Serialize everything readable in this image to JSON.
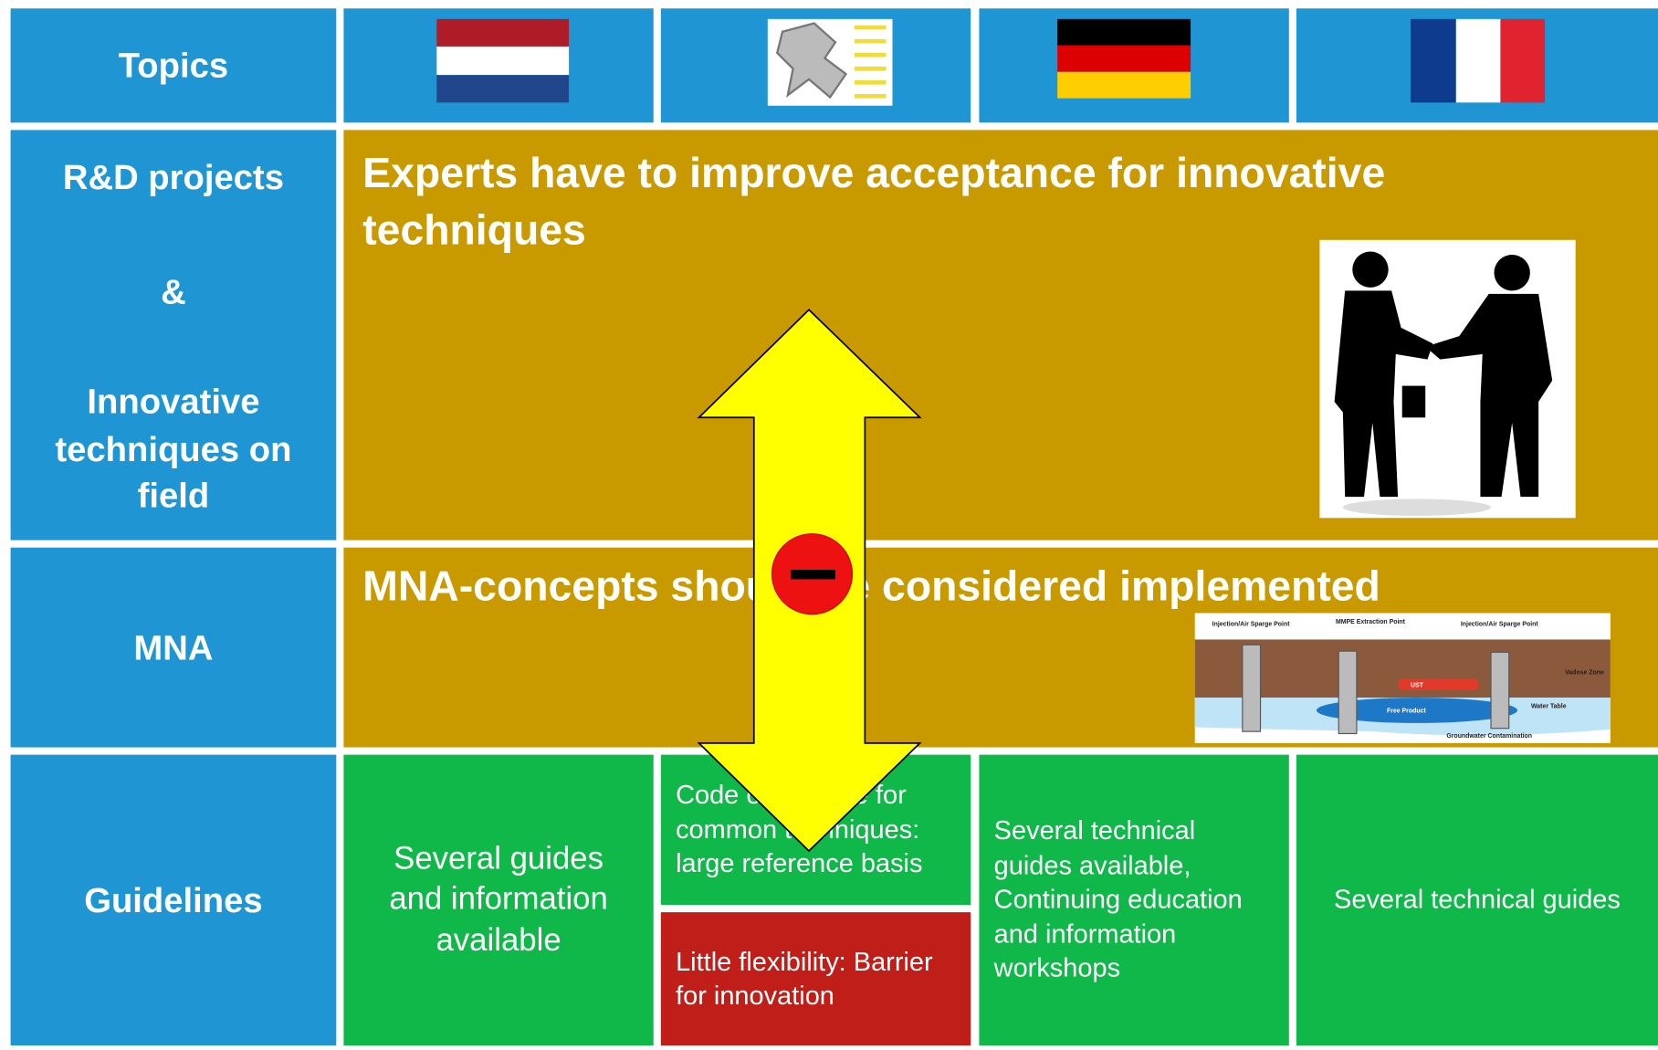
{
  "header": {
    "topics": "Topics"
  },
  "rows": [
    {
      "labels": [
        "R&D projects",
        "&",
        "Innovative techniques on field"
      ],
      "statement": "Experts have to improve acceptance for innovative techniques"
    },
    {
      "labels": [
        "MNA"
      ],
      "statement": "MNA-concepts should be considered implemented",
      "diagram": [
        "Injection/Air Sparge Point",
        "MMPE Extraction Point",
        "Injection/Air Sparge Point",
        "UST",
        "Free Product",
        "Vadose Zone",
        "Water Table",
        "Groundwater Contamination"
      ]
    },
    {
      "labels": [
        "Guidelines"
      ],
      "cells": [
        "Several guides and information available",
        "Code of practice for common techniques: large reference basis",
        "Little flexibility: Barrier for innovation",
        "Several technical guides available, Continuing education and information workshops",
        "Several technical guides"
      ]
    }
  ]
}
